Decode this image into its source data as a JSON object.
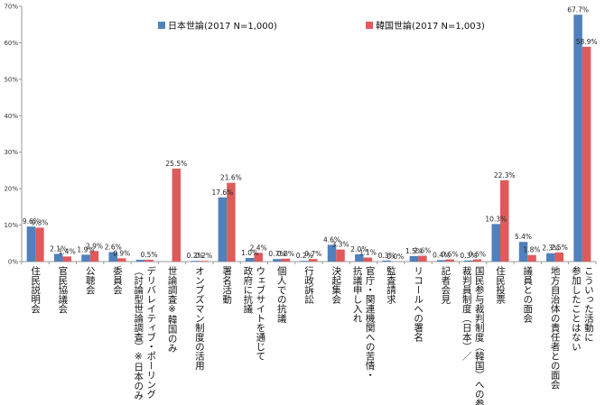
{
  "chart_data": {
    "type": "bar",
    "title": "",
    "xlabel": "",
    "ylabel": "",
    "ylim": [
      0,
      70
    ],
    "ytick_labels": [
      "0%",
      "10%",
      "20%",
      "30%",
      "40%",
      "50%",
      "60%",
      "70%"
    ],
    "ytick_values": [
      0,
      10,
      20,
      30,
      40,
      50,
      60,
      70
    ],
    "grid": false,
    "legend_position": "top-center",
    "categories": [
      "住民説明会",
      "官民協議会",
      "公聴会",
      "委員会",
      "デリバレイティブ・ポーリング\n（討論型世論調査）※日本のみ",
      "世論調査※韓国のみ",
      "オンブズマン制度の活用",
      "署名活動",
      "ウェブサイトを通じて\n政府に抗議",
      "個人での抗議",
      "行政訴訟",
      "決起集会",
      "官庁・関連機関への苦情・\n抗議申し入れ",
      "監査請求",
      "リコールへの署名",
      "記者会見",
      "国民参与裁判制度（韓国）への参加\n裁判員制度（日本）／",
      "住民投票",
      "議員との面会",
      "地方自治体の責任者との面会",
      "こういった活動に\n参加したことはない"
    ],
    "series": [
      {
        "name": "日本世論(2017 N=1,000)",
        "color": "#4F81BD",
        "values": [
          9.6,
          2.1,
          1.9,
          2.6,
          0.5,
          null,
          0.2,
          17.6,
          1.0,
          0.7,
          0.2,
          4.6,
          2.0,
          0.3,
          1.5,
          0.4,
          0.3,
          10.3,
          5.4,
          2.3,
          67.7
        ],
        "labels": [
          "9.6%",
          "2.1%",
          "1.9%",
          "2.6%",
          "",
          "",
          "0.2%",
          "17.6%",
          "1.0%",
          "0.7%",
          "0.2%",
          "4.6%",
          "2.0%",
          "0.3%",
          "1.5%",
          "0.4%",
          "0.3%",
          "10.3%",
          "5.4%",
          "2.3%",
          "67.7%"
        ]
      },
      {
        "name": "韓国世論(2017 N=1,003)",
        "color": "#E05A5C",
        "values": [
          9.3,
          1.4,
          2.9,
          0.9,
          0.5,
          25.5,
          0.2,
          21.6,
          2.4,
          0.8,
          0.7,
          3.3,
          1.1,
          0.0,
          1.6,
          0.6,
          0.6,
          22.3,
          1.8,
          2.5,
          58.9
        ],
        "labels": [
          "9.3%",
          "1.4%",
          "2.9%",
          "0.9%",
          "0.5%",
          "25.5%",
          "0.2%",
          "21.6%",
          "2.4%",
          "0.8%",
          "0.7%",
          "3.3%",
          "1.1%",
          "0.0%",
          "1.6%",
          "0.6%",
          "0.6%",
          "22.3%",
          "1.8%",
          "2.5%",
          "58.9%"
        ]
      }
    ]
  }
}
